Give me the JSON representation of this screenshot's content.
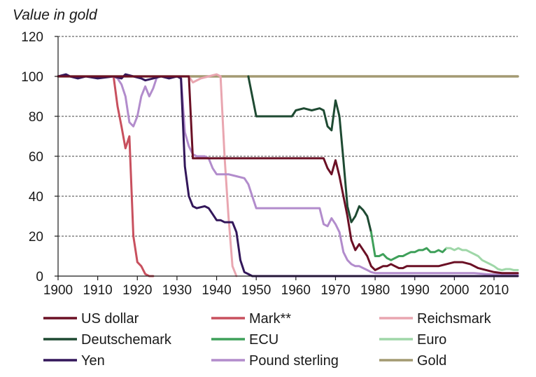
{
  "chart_data": {
    "type": "line",
    "ylabel": "Value in gold",
    "xlim": [
      1900,
      2016
    ],
    "ylim": [
      0,
      120
    ],
    "x_ticks": [
      "1900",
      "1910",
      "1920",
      "1930",
      "1940",
      "1950",
      "1960",
      "1970",
      "1980",
      "1990",
      "2000",
      "2010"
    ],
    "y_ticks": [
      "0",
      "20",
      "40",
      "60",
      "80",
      "100",
      "120"
    ],
    "grid": "horizontal dashed",
    "legend_position": "bottom",
    "series": [
      {
        "name": "US dollar",
        "color": "#6b1025",
        "points": [
          [
            1900,
            100
          ],
          [
            1933,
            100
          ],
          [
            1934,
            59
          ],
          [
            1967,
            59
          ],
          [
            1968,
            54
          ],
          [
            1969,
            51
          ],
          [
            1970,
            58
          ],
          [
            1971,
            50
          ],
          [
            1972,
            40
          ],
          [
            1973,
            30
          ],
          [
            1974,
            18
          ],
          [
            1975,
            13
          ],
          [
            1976,
            16
          ],
          [
            1977,
            13
          ],
          [
            1978,
            10
          ],
          [
            1979,
            5
          ],
          [
            1980,
            3
          ],
          [
            1981,
            4
          ],
          [
            1982,
            5
          ],
          [
            1983,
            5
          ],
          [
            1984,
            6
          ],
          [
            1985,
            5
          ],
          [
            1986,
            4
          ],
          [
            1987,
            4
          ],
          [
            1988,
            5
          ],
          [
            1990,
            5
          ],
          [
            1992,
            5
          ],
          [
            1994,
            5
          ],
          [
            1996,
            5
          ],
          [
            1998,
            6
          ],
          [
            2000,
            7
          ],
          [
            2002,
            7
          ],
          [
            2004,
            6
          ],
          [
            2006,
            4
          ],
          [
            2008,
            3
          ],
          [
            2010,
            2
          ],
          [
            2012,
            1.5
          ],
          [
            2014,
            1.5
          ],
          [
            2016,
            1.5
          ]
        ]
      },
      {
        "name": "Mark**",
        "color": "#c8505e",
        "points": [
          [
            1900,
            100
          ],
          [
            1914,
            100
          ],
          [
            1915,
            85
          ],
          [
            1916,
            75
          ],
          [
            1917,
            64
          ],
          [
            1918,
            70
          ],
          [
            1919,
            20
          ],
          [
            1920,
            7
          ],
          [
            1921,
            5
          ],
          [
            1922,
            1
          ],
          [
            1923,
            0
          ],
          [
            1924,
            0
          ]
        ]
      },
      {
        "name": "Reichsmark",
        "color": "#e9a6b0",
        "points": [
          [
            1924,
            100
          ],
          [
            1933,
            100
          ],
          [
            1934,
            97
          ],
          [
            1936,
            99
          ],
          [
            1938,
            100
          ],
          [
            1940,
            101
          ],
          [
            1941,
            100
          ],
          [
            1942,
            60
          ],
          [
            1943,
            30
          ],
          [
            1944,
            5
          ],
          [
            1945,
            0
          ]
        ]
      },
      {
        "name": "Deutschemark",
        "color": "#1e4a32",
        "points": [
          [
            1948,
            100
          ],
          [
            1950,
            80
          ],
          [
            1958,
            80
          ],
          [
            1959,
            80
          ],
          [
            1960,
            83
          ],
          [
            1962,
            84
          ],
          [
            1964,
            83
          ],
          [
            1966,
            84
          ],
          [
            1967,
            83
          ],
          [
            1968,
            75
          ],
          [
            1969,
            73
          ],
          [
            1970,
            88
          ],
          [
            1971,
            80
          ],
          [
            1972,
            58
          ],
          [
            1973,
            35
          ],
          [
            1974,
            27
          ],
          [
            1975,
            30
          ],
          [
            1976,
            35
          ],
          [
            1977,
            33
          ],
          [
            1978,
            30
          ],
          [
            1979,
            22
          ]
        ]
      },
      {
        "name": "ECU",
        "color": "#3fa05a",
        "points": [
          [
            1979,
            22
          ],
          [
            1980,
            10
          ],
          [
            1981,
            10
          ],
          [
            1982,
            11
          ],
          [
            1983,
            9
          ],
          [
            1984,
            8
          ],
          [
            1985,
            9
          ],
          [
            1986,
            10
          ],
          [
            1987,
            10
          ],
          [
            1988,
            11
          ],
          [
            1989,
            12
          ],
          [
            1990,
            12
          ],
          [
            1991,
            13
          ],
          [
            1992,
            13
          ],
          [
            1993,
            14
          ],
          [
            1994,
            12
          ],
          [
            1995,
            12
          ],
          [
            1996,
            13
          ],
          [
            1997,
            12
          ],
          [
            1998,
            14
          ]
        ]
      },
      {
        "name": "Euro",
        "color": "#9fd7a8",
        "points": [
          [
            1998,
            14
          ],
          [
            1999,
            14
          ],
          [
            2000,
            13
          ],
          [
            2001,
            14
          ],
          [
            2002,
            13
          ],
          [
            2003,
            13
          ],
          [
            2004,
            12
          ],
          [
            2005,
            11
          ],
          [
            2006,
            10
          ],
          [
            2007,
            8
          ],
          [
            2008,
            7
          ],
          [
            2009,
            6
          ],
          [
            2010,
            5
          ],
          [
            2011,
            3.5
          ],
          [
            2012,
            3
          ],
          [
            2013,
            3.5
          ],
          [
            2014,
            3.5
          ],
          [
            2015,
            3
          ],
          [
            2016,
            3
          ]
        ]
      },
      {
        "name": "Yen",
        "color": "#33175a",
        "points": [
          [
            1900,
            100
          ],
          [
            1902,
            101
          ],
          [
            1903,
            100
          ],
          [
            1905,
            99
          ],
          [
            1907,
            100
          ],
          [
            1910,
            99
          ],
          [
            1914,
            100
          ],
          [
            1916,
            99
          ],
          [
            1917,
            101
          ],
          [
            1919,
            100
          ],
          [
            1921,
            99
          ],
          [
            1922,
            98
          ],
          [
            1924,
            99
          ],
          [
            1926,
            100
          ],
          [
            1928,
            99
          ],
          [
            1930,
            100
          ],
          [
            1931,
            99
          ],
          [
            1932,
            55
          ],
          [
            1933,
            40
          ],
          [
            1934,
            35
          ],
          [
            1935,
            34
          ],
          [
            1937,
            35
          ],
          [
            1938,
            34
          ],
          [
            1939,
            31
          ],
          [
            1940,
            28
          ],
          [
            1941,
            28
          ],
          [
            1942,
            27
          ],
          [
            1944,
            27
          ],
          [
            1945,
            22
          ],
          [
            1946,
            8
          ],
          [
            1947,
            2
          ],
          [
            1948,
            1
          ],
          [
            1949,
            0
          ],
          [
            2016,
            0
          ]
        ]
      },
      {
        "name": "Pound sterling",
        "color": "#b28ccc",
        "points": [
          [
            1900,
            100
          ],
          [
            1914,
            100
          ],
          [
            1915,
            99
          ],
          [
            1916,
            96
          ],
          [
            1917,
            90
          ],
          [
            1918,
            77
          ],
          [
            1919,
            75
          ],
          [
            1920,
            80
          ],
          [
            1921,
            90
          ],
          [
            1922,
            95
          ],
          [
            1923,
            90
          ],
          [
            1924,
            94
          ],
          [
            1925,
            100
          ],
          [
            1931,
            100
          ],
          [
            1932,
            72
          ],
          [
            1933,
            65
          ],
          [
            1934,
            61
          ],
          [
            1935,
            60
          ],
          [
            1936,
            60
          ],
          [
            1937,
            60
          ],
          [
            1938,
            59
          ],
          [
            1939,
            54
          ],
          [
            1940,
            51
          ],
          [
            1941,
            51
          ],
          [
            1943,
            51
          ],
          [
            1945,
            50
          ],
          [
            1947,
            49
          ],
          [
            1948,
            46
          ],
          [
            1949,
            40
          ],
          [
            1950,
            34
          ],
          [
            1966,
            34
          ],
          [
            1967,
            26
          ],
          [
            1968,
            25
          ],
          [
            1969,
            29
          ],
          [
            1970,
            26
          ],
          [
            1971,
            22
          ],
          [
            1972,
            12
          ],
          [
            1973,
            8
          ],
          [
            1974,
            6
          ],
          [
            1975,
            5
          ],
          [
            1976,
            5
          ],
          [
            1977,
            4
          ],
          [
            1978,
            3
          ],
          [
            1979,
            2
          ],
          [
            1980,
            1.5
          ],
          [
            1985,
            1.5
          ],
          [
            1990,
            1.5
          ],
          [
            1995,
            1.5
          ],
          [
            2000,
            1.5
          ],
          [
            2005,
            1.5
          ],
          [
            2008,
            1
          ],
          [
            2010,
            0.8
          ],
          [
            2016,
            0.8
          ]
        ]
      },
      {
        "name": "Gold",
        "color": "#a39a72",
        "points": [
          [
            1900,
            100
          ],
          [
            2016,
            100
          ]
        ]
      }
    ]
  }
}
